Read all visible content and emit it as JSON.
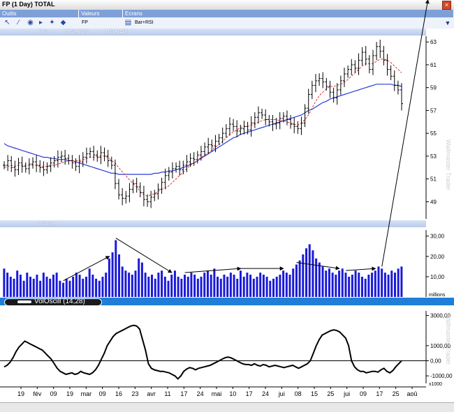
{
  "window": {
    "title": "FP (1 Day) TOTAL",
    "close": "×"
  },
  "toolbar": {
    "headers": [
      "Outils",
      "Valeurs",
      "Ecrans"
    ],
    "symbol": "FP",
    "screen": "Bar+RSI",
    "icons": [
      "cursor-icon",
      "draw-line-icon",
      "globe-icon",
      "arrow-icon",
      "tools-icon",
      "color-icon",
      "book-icon"
    ]
  },
  "colors": {
    "price": "#000000",
    "mma10": "#e03030",
    "mma40": "#2a3cd8",
    "volume": "#1a1ad8",
    "osc": "#000000",
    "accent": "#1f7fd8"
  },
  "price_legend": {
    "prix": "Prix",
    "mma10": "MMA(10)",
    "mma40": "MMA(40)"
  },
  "volume_legend": {
    "label": "volume",
    "unit": "millions"
  },
  "osc_legend": {
    "label": "VolOscill (14,28)",
    "unit": "x1000"
  },
  "watermark": "Wallmaster Trader",
  "chart_data": [
    {
      "type": "ohlc",
      "title": "FP (1 Day) TOTAL",
      "x_tick_labels": [
        "19",
        "fév",
        "09",
        "19",
        "mar",
        "09",
        "16",
        "23",
        "avr",
        "11",
        "17",
        "24",
        "mai",
        "10",
        "17",
        "24",
        "jui",
        "08",
        "15",
        "25",
        "jui",
        "09",
        "17",
        "25",
        "aoû"
      ],
      "y_ticks": [
        49,
        51,
        53,
        55,
        57,
        59,
        61,
        63
      ],
      "ylim": [
        47.5,
        63.5
      ],
      "closes": [
        52.2,
        52.6,
        52.0,
        51.8,
        52.4,
        52.1,
        51.9,
        52.3,
        52.5,
        52.2,
        52.0,
        51.8,
        52.1,
        52.4,
        52.6,
        52.9,
        53.0,
        52.8,
        52.6,
        52.4,
        52.1,
        52.5,
        52.9,
        53.2,
        53.4,
        53.1,
        52.9,
        53.3,
        53.0,
        52.6,
        52.2,
        50.6,
        49.6,
        49.3,
        49.5,
        50.1,
        50.6,
        50.3,
        49.8,
        49.2,
        49.0,
        49.4,
        49.7,
        50.1,
        50.7,
        51.3,
        51.6,
        51.9,
        52.1,
        51.8,
        52.2,
        52.5,
        52.8,
        52.7,
        53.1,
        53.4,
        53.8,
        54.0,
        53.9,
        54.3,
        54.6,
        55.0,
        55.4,
        55.8,
        55.6,
        55.2,
        55.4,
        55.6,
        55.3,
        55.9,
        56.4,
        56.8,
        56.6,
        56.2,
        56.0,
        55.8,
        55.9,
        56.3,
        56.5,
        56.2,
        55.8,
        55.6,
        55.4,
        55.9,
        57.2,
        58.4,
        59.2,
        59.6,
        59.8,
        59.5,
        59.1,
        58.6,
        58.1,
        58.8,
        59.6,
        60.2,
        60.6,
        61.0,
        60.7,
        61.4,
        62.1,
        61.5,
        60.6,
        61.8,
        62.6,
        62.2,
        61.4,
        60.6,
        60.0,
        59.2,
        58.8,
        57.6
      ],
      "mma10": [
        52.0,
        52.1,
        52.2,
        52.1,
        52.2,
        52.2,
        52.2,
        52.2,
        52.2,
        52.2,
        52.1,
        52.1,
        52.1,
        52.2,
        52.2,
        52.3,
        52.4,
        52.5,
        52.6,
        52.6,
        52.6,
        52.6,
        52.7,
        52.8,
        52.9,
        52.9,
        53.0,
        53.0,
        53.0,
        52.9,
        52.6,
        52.4,
        52.0,
        51.6,
        51.3,
        50.9,
        50.6,
        50.3,
        49.9,
        49.6,
        49.5,
        49.6,
        49.7,
        49.9,
        50.1,
        50.2,
        50.4,
        50.7,
        51.0,
        51.3,
        51.6,
        51.9,
        52.2,
        52.4,
        52.6,
        52.9,
        53.1,
        53.3,
        53.5,
        53.8,
        54.0,
        54.3,
        54.6,
        54.9,
        55.1,
        55.3,
        55.5,
        55.6,
        55.6,
        55.7,
        55.8,
        56.0,
        56.1,
        56.2,
        56.2,
        56.2,
        56.2,
        56.1,
        56.1,
        56.0,
        55.9,
        55.8,
        55.7,
        55.9,
        56.2,
        56.6,
        57.2,
        57.8,
        58.3,
        58.6,
        58.9,
        59.1,
        59.1,
        59.2,
        59.3,
        59.5,
        59.7,
        60.0,
        60.3,
        60.6,
        60.9,
        61.1,
        61.1,
        61.1,
        61.3,
        61.5,
        61.5,
        61.4,
        61.2,
        60.9,
        60.6,
        60.3
      ],
      "mma40": [
        54.1,
        53.9,
        53.8,
        53.7,
        53.6,
        53.5,
        53.4,
        53.3,
        53.2,
        53.1,
        53.0,
        52.9,
        52.9,
        52.8,
        52.8,
        52.7,
        52.7,
        52.7,
        52.6,
        52.6,
        52.5,
        52.4,
        52.3,
        52.2,
        52.1,
        52.0,
        51.9,
        51.8,
        51.7,
        51.6,
        51.5,
        51.5,
        51.4,
        51.4,
        51.4,
        51.4,
        51.4,
        51.4,
        51.4,
        51.4,
        51.4,
        51.4,
        51.5,
        51.5,
        51.6,
        51.6,
        51.7,
        51.7,
        51.8,
        51.9,
        52.0,
        52.1,
        52.3,
        52.4,
        52.6,
        52.8,
        53.0,
        53.2,
        53.4,
        53.6,
        53.8,
        54.0,
        54.2,
        54.4,
        54.6,
        54.7,
        54.9,
        55.0,
        55.1,
        55.2,
        55.3,
        55.4,
        55.5,
        55.6,
        55.7,
        55.8,
        55.9,
        56.0,
        56.1,
        56.2,
        56.3,
        56.4,
        56.5,
        56.6,
        56.8,
        57.0,
        57.1,
        57.3,
        57.5,
        57.7,
        57.8,
        58.0,
        58.1,
        58.2,
        58.3,
        58.4,
        58.5,
        58.6,
        58.7,
        58.8,
        58.9,
        59.0,
        59.1,
        59.2,
        59.3,
        59.3,
        59.3,
        59.3,
        59.3,
        59.2,
        59.2,
        59.1
      ]
    },
    {
      "type": "bar",
      "title": "volume",
      "ylabel": "millions",
      "y_ticks": [
        10,
        20,
        30
      ],
      "ylim": [
        0,
        33
      ],
      "values": [
        14,
        12,
        10,
        9,
        13,
        11,
        8,
        12,
        10,
        9,
        11,
        8,
        12,
        10,
        9,
        11,
        12,
        8,
        7,
        9,
        8,
        10,
        12,
        11,
        9,
        10,
        14,
        11,
        9,
        8,
        10,
        12,
        19,
        22,
        28,
        21,
        15,
        13,
        12,
        11,
        13,
        19,
        17,
        12,
        10,
        11,
        9,
        12,
        13,
        10,
        8,
        11,
        13,
        10,
        9,
        11,
        10,
        12,
        11,
        9,
        10,
        12,
        13,
        11,
        14,
        10,
        9,
        11,
        10,
        12,
        11,
        9,
        13,
        10,
        12,
        11,
        9,
        10,
        12,
        11,
        10,
        8,
        9,
        10,
        11,
        13,
        12,
        11,
        14,
        16,
        18,
        21,
        24,
        26,
        23,
        19,
        17,
        15,
        13,
        14,
        12,
        11,
        13,
        14,
        12,
        10,
        11,
        13,
        12,
        10,
        9,
        11,
        12,
        13,
        15,
        14,
        12,
        11,
        13,
        12,
        14,
        15
      ]
    },
    {
      "type": "line",
      "title": "VolOscill (14,28)",
      "ylabel": "x1000",
      "y_ticks": [
        -1000,
        0,
        1000,
        3000
      ],
      "ylim": [
        -1500,
        3300
      ],
      "values": [
        -400,
        -300,
        -100,
        200,
        600,
        900,
        1100,
        1300,
        1200,
        1100,
        1000,
        900,
        800,
        700,
        500,
        300,
        100,
        -200,
        -500,
        -700,
        -800,
        -900,
        -850,
        -800,
        -900,
        -850,
        -700,
        -800,
        -850,
        -900,
        -800,
        -600,
        -300,
        100,
        500,
        1000,
        1300,
        1600,
        1800,
        1900,
        2000,
        2100,
        2200,
        2300,
        2350,
        2300,
        2100,
        1400,
        700,
        -200,
        -500,
        -600,
        -650,
        -700,
        -700,
        -750,
        -800,
        -900,
        -1000,
        -1200,
        -1000,
        -700,
        -550,
        -450,
        -500,
        -600,
        -500,
        -450,
        -400,
        -350,
        -300,
        -200,
        -100,
        0,
        100,
        200,
        250,
        200,
        100,
        0,
        -100,
        -200,
        -250,
        -250,
        -300,
        -200,
        -300,
        -350,
        -250,
        -300,
        -400,
        -350,
        -300,
        -350,
        -400,
        -450,
        -400,
        -350,
        -300,
        -400,
        -500,
        -400,
        -300,
        -200,
        0,
        500,
        1000,
        1400,
        1700,
        1800,
        1900,
        2000,
        2050,
        2000,
        1900,
        1700,
        1500,
        1000,
        0,
        -400,
        -600,
        -700,
        -700,
        -800,
        -750,
        -700,
        -700,
        -750,
        -600,
        -500,
        -700,
        -800,
        -650,
        -400,
        -200,
        0
      ]
    }
  ]
}
